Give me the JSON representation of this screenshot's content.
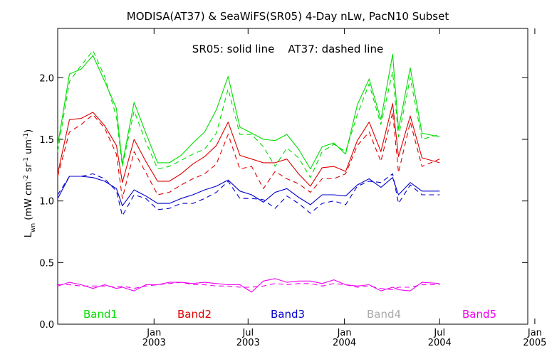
{
  "chart_data": {
    "type": "line",
    "title": "MODISA(AT37) & SeaWiFS(SR05) 4-Day nLw, PacN10 Subset",
    "note": "SR05: solid line    AT37: dashed line",
    "ylabel": {
      "base": "L",
      "base_sub": "wn",
      "unit_open": " (mW cm",
      "sup1": "-2",
      "mid1": " sr",
      "sup2": "-1",
      "mid2": " um",
      "sup3": "-1",
      "unit_close": ")"
    },
    "ylim": [
      0.0,
      2.4
    ],
    "yticks": [
      {
        "value": 0.0,
        "label": "0.0"
      },
      {
        "value": 0.5,
        "label": "0.5"
      },
      {
        "value": 1.0,
        "label": "1.0"
      },
      {
        "value": 1.5,
        "label": "1.5"
      },
      {
        "value": 2.0,
        "label": "2.0"
      }
    ],
    "xlim": [
      0,
      40
    ],
    "xticks": [
      {
        "value": 8.2,
        "month": "Jan",
        "year": "2003"
      },
      {
        "value": 16.2,
        "month": "Jul",
        "year": "2003"
      },
      {
        "value": 24.4,
        "month": "Jan",
        "year": "2004"
      },
      {
        "value": 32.5,
        "month": "Jul",
        "year": "2004"
      },
      {
        "value": 40.6,
        "month": "Jan",
        "year": "2005"
      }
    ],
    "legend": {
      "placement": "bottom",
      "entries": [
        {
          "label": "Band1",
          "color": "#00dd00"
        },
        {
          "label": "Band2",
          "color": "#dd0000"
        },
        {
          "label": "Band3",
          "color": "#0000cc"
        },
        {
          "label": "Band4",
          "color": "#aaaaaa"
        },
        {
          "label": "Band5",
          "color": "#ee00ee"
        }
      ]
    },
    "series": [
      {
        "color": "#00dd00",
        "style": "solid",
        "points": [
          [
            0,
            1.45
          ],
          [
            1,
            2.03
          ],
          [
            2,
            2.07
          ],
          [
            3,
            2.18
          ],
          [
            4,
            1.97
          ],
          [
            5,
            1.75
          ],
          [
            5.5,
            1.3
          ],
          [
            6.5,
            1.8
          ],
          [
            7.5,
            1.55
          ],
          [
            8.5,
            1.31
          ],
          [
            9.5,
            1.31
          ],
          [
            10.5,
            1.37
          ],
          [
            11.5,
            1.47
          ],
          [
            12.5,
            1.56
          ],
          [
            13.5,
            1.74
          ],
          [
            14.5,
            2.01
          ],
          [
            15.5,
            1.6
          ],
          [
            16.5,
            1.55
          ],
          [
            17.5,
            1.5
          ],
          [
            18.5,
            1.49
          ],
          [
            19.5,
            1.54
          ],
          [
            20.5,
            1.42
          ],
          [
            21.5,
            1.26
          ],
          [
            22.5,
            1.44
          ],
          [
            23.5,
            1.47
          ],
          [
            24.5,
            1.38
          ],
          [
            25.5,
            1.78
          ],
          [
            26.5,
            1.99
          ],
          [
            27.5,
            1.66
          ],
          [
            28.5,
            2.19
          ],
          [
            29,
            1.58
          ],
          [
            30,
            2.08
          ],
          [
            31,
            1.55
          ],
          [
            32.5,
            1.52
          ]
        ]
      },
      {
        "color": "#00dd00",
        "style": "dashed",
        "points": [
          [
            0,
            1.4
          ],
          [
            1,
            1.97
          ],
          [
            2,
            2.1
          ],
          [
            3,
            2.22
          ],
          [
            4,
            2.01
          ],
          [
            5,
            1.68
          ],
          [
            5.5,
            1.28
          ],
          [
            6.5,
            1.73
          ],
          [
            7.5,
            1.48
          ],
          [
            8.5,
            1.26
          ],
          [
            9.5,
            1.28
          ],
          [
            10.5,
            1.33
          ],
          [
            11.5,
            1.38
          ],
          [
            12.5,
            1.42
          ],
          [
            13.5,
            1.55
          ],
          [
            14.5,
            1.91
          ],
          [
            15.5,
            1.54
          ],
          [
            16.5,
            1.54
          ],
          [
            17.5,
            1.44
          ],
          [
            18.5,
            1.28
          ],
          [
            19.5,
            1.43
          ],
          [
            20.5,
            1.35
          ],
          [
            21.5,
            1.19
          ],
          [
            22.5,
            1.4
          ],
          [
            23.5,
            1.46
          ],
          [
            24.5,
            1.4
          ],
          [
            25.5,
            1.7
          ],
          [
            26.5,
            1.95
          ],
          [
            27.5,
            1.62
          ],
          [
            28.5,
            2.05
          ],
          [
            29,
            1.52
          ],
          [
            30,
            2.0
          ],
          [
            31,
            1.5
          ],
          [
            32.5,
            1.54
          ]
        ]
      },
      {
        "color": "#dd0000",
        "style": "solid",
        "points": [
          [
            0,
            1.22
          ],
          [
            1,
            1.66
          ],
          [
            2,
            1.67
          ],
          [
            3,
            1.72
          ],
          [
            4,
            1.61
          ],
          [
            5,
            1.45
          ],
          [
            5.5,
            1.15
          ],
          [
            6.5,
            1.5
          ],
          [
            7.5,
            1.32
          ],
          [
            8.5,
            1.16
          ],
          [
            9.5,
            1.16
          ],
          [
            10.5,
            1.22
          ],
          [
            11.5,
            1.3
          ],
          [
            12.5,
            1.36
          ],
          [
            13.5,
            1.45
          ],
          [
            14.5,
            1.64
          ],
          [
            15.5,
            1.37
          ],
          [
            16.5,
            1.34
          ],
          [
            17.5,
            1.31
          ],
          [
            18.5,
            1.31
          ],
          [
            19.5,
            1.34
          ],
          [
            20.5,
            1.22
          ],
          [
            21.5,
            1.12
          ],
          [
            22.5,
            1.27
          ],
          [
            23.5,
            1.28
          ],
          [
            24.5,
            1.24
          ],
          [
            25.5,
            1.49
          ],
          [
            26.5,
            1.64
          ],
          [
            27.5,
            1.4
          ],
          [
            28.5,
            1.79
          ],
          [
            29,
            1.36
          ],
          [
            30,
            1.69
          ],
          [
            31,
            1.35
          ],
          [
            32.5,
            1.31
          ]
        ]
      },
      {
        "color": "#dd0000",
        "style": "dashed",
        "points": [
          [
            0,
            1.2
          ],
          [
            1,
            1.56
          ],
          [
            2,
            1.62
          ],
          [
            3,
            1.7
          ],
          [
            4,
            1.59
          ],
          [
            5,
            1.38
          ],
          [
            5.5,
            1.02
          ],
          [
            6.5,
            1.4
          ],
          [
            7.5,
            1.23
          ],
          [
            8.5,
            1.05
          ],
          [
            9.5,
            1.07
          ],
          [
            10.5,
            1.13
          ],
          [
            11.5,
            1.18
          ],
          [
            12.5,
            1.22
          ],
          [
            13.5,
            1.3
          ],
          [
            14.5,
            1.54
          ],
          [
            15.5,
            1.26
          ],
          [
            16.5,
            1.28
          ],
          [
            17.5,
            1.1
          ],
          [
            18.5,
            1.24
          ],
          [
            19.5,
            1.18
          ],
          [
            20.5,
            1.14
          ],
          [
            21.5,
            1.07
          ],
          [
            22.5,
            1.18
          ],
          [
            23.5,
            1.18
          ],
          [
            24.5,
            1.22
          ],
          [
            25.5,
            1.45
          ],
          [
            26.5,
            1.56
          ],
          [
            27.5,
            1.32
          ],
          [
            28.5,
            1.72
          ],
          [
            29,
            1.23
          ],
          [
            30,
            1.64
          ],
          [
            31,
            1.28
          ],
          [
            32.5,
            1.34
          ]
        ]
      },
      {
        "color": "#0000cc",
        "style": "solid",
        "points": [
          [
            0,
            1.02
          ],
          [
            1,
            1.2
          ],
          [
            2,
            1.2
          ],
          [
            3,
            1.19
          ],
          [
            4,
            1.16
          ],
          [
            5,
            1.1
          ],
          [
            5.5,
            0.96
          ],
          [
            6.5,
            1.09
          ],
          [
            7.5,
            1.04
          ],
          [
            8.5,
            0.98
          ],
          [
            9.5,
            0.98
          ],
          [
            10.5,
            1.02
          ],
          [
            11.5,
            1.05
          ],
          [
            12.5,
            1.09
          ],
          [
            13.5,
            1.12
          ],
          [
            14.5,
            1.17
          ],
          [
            15.5,
            1.08
          ],
          [
            16.5,
            1.05
          ],
          [
            17.5,
            0.99
          ],
          [
            18.5,
            1.07
          ],
          [
            19.5,
            1.1
          ],
          [
            20.5,
            1.03
          ],
          [
            21.5,
            0.97
          ],
          [
            22.5,
            1.05
          ],
          [
            23.5,
            1.05
          ],
          [
            24.5,
            1.04
          ],
          [
            25.5,
            1.13
          ],
          [
            26.5,
            1.18
          ],
          [
            27.5,
            1.11
          ],
          [
            28.5,
            1.19
          ],
          [
            29,
            1.05
          ],
          [
            30,
            1.15
          ],
          [
            31,
            1.08
          ],
          [
            32.5,
            1.08
          ]
        ]
      },
      {
        "color": "#0000cc",
        "style": "dashed",
        "points": [
          [
            0,
            1.05
          ],
          [
            1,
            1.2
          ],
          [
            2,
            1.2
          ],
          [
            3,
            1.22
          ],
          [
            4,
            1.18
          ],
          [
            5,
            1.08
          ],
          [
            5.5,
            0.88
          ],
          [
            6.5,
            1.05
          ],
          [
            7.5,
            1.02
          ],
          [
            8.5,
            0.93
          ],
          [
            9.5,
            0.94
          ],
          [
            10.5,
            0.98
          ],
          [
            11.5,
            0.98
          ],
          [
            12.5,
            1.02
          ],
          [
            13.5,
            1.07
          ],
          [
            14.5,
            1.16
          ],
          [
            15.5,
            1.02
          ],
          [
            16.5,
            1.02
          ],
          [
            17.5,
            1.01
          ],
          [
            18.5,
            0.94
          ],
          [
            19.5,
            1.04
          ],
          [
            20.5,
            0.98
          ],
          [
            21.5,
            0.9
          ],
          [
            22.5,
            0.98
          ],
          [
            23.5,
            1.0
          ],
          [
            24.5,
            0.97
          ],
          [
            25.5,
            1.12
          ],
          [
            26.5,
            1.16
          ],
          [
            27.5,
            1.15
          ],
          [
            28.5,
            1.22
          ],
          [
            29,
            0.98
          ],
          [
            30,
            1.13
          ],
          [
            31,
            1.05
          ],
          [
            32.5,
            1.05
          ]
        ]
      },
      {
        "color": "#ee00ee",
        "style": "solid",
        "points": [
          [
            0,
            0.31
          ],
          [
            1,
            0.34
          ],
          [
            2,
            0.32
          ],
          [
            3,
            0.29
          ],
          [
            4,
            0.32
          ],
          [
            5,
            0.29
          ],
          [
            5.5,
            0.3
          ],
          [
            6.5,
            0.27
          ],
          [
            7.5,
            0.32
          ],
          [
            8.5,
            0.32
          ],
          [
            9.5,
            0.34
          ],
          [
            10.5,
            0.34
          ],
          [
            11.5,
            0.33
          ],
          [
            12.5,
            0.34
          ],
          [
            13.5,
            0.33
          ],
          [
            14.5,
            0.32
          ],
          [
            15.5,
            0.32
          ],
          [
            16.5,
            0.26
          ],
          [
            17.5,
            0.35
          ],
          [
            18.5,
            0.37
          ],
          [
            19.5,
            0.34
          ],
          [
            20.5,
            0.35
          ],
          [
            21.5,
            0.35
          ],
          [
            22.5,
            0.33
          ],
          [
            23.5,
            0.36
          ],
          [
            24.5,
            0.32
          ],
          [
            25.5,
            0.31
          ],
          [
            26.5,
            0.32
          ],
          [
            27.5,
            0.27
          ],
          [
            28.5,
            0.3
          ],
          [
            29,
            0.28
          ],
          [
            30,
            0.27
          ],
          [
            31,
            0.34
          ],
          [
            32.5,
            0.33
          ]
        ]
      },
      {
        "color": "#ee00ee",
        "style": "dashed",
        "points": [
          [
            0,
            0.32
          ],
          [
            1,
            0.32
          ],
          [
            2,
            0.31
          ],
          [
            3,
            0.31
          ],
          [
            4,
            0.31
          ],
          [
            5,
            0.3
          ],
          [
            5.5,
            0.31
          ],
          [
            6.5,
            0.29
          ],
          [
            7.5,
            0.31
          ],
          [
            8.5,
            0.32
          ],
          [
            9.5,
            0.33
          ],
          [
            10.5,
            0.34
          ],
          [
            11.5,
            0.32
          ],
          [
            12.5,
            0.32
          ],
          [
            13.5,
            0.31
          ],
          [
            14.5,
            0.31
          ],
          [
            15.5,
            0.3
          ],
          [
            16.5,
            0.3
          ],
          [
            17.5,
            0.31
          ],
          [
            18.5,
            0.33
          ],
          [
            19.5,
            0.32
          ],
          [
            20.5,
            0.33
          ],
          [
            21.5,
            0.33
          ],
          [
            22.5,
            0.31
          ],
          [
            23.5,
            0.33
          ],
          [
            24.5,
            0.32
          ],
          [
            25.5,
            0.3
          ],
          [
            26.5,
            0.31
          ],
          [
            27.5,
            0.29
          ],
          [
            28.5,
            0.28
          ],
          [
            29,
            0.3
          ],
          [
            30,
            0.3
          ],
          [
            31,
            0.32
          ],
          [
            32.5,
            0.32
          ]
        ]
      }
    ]
  }
}
